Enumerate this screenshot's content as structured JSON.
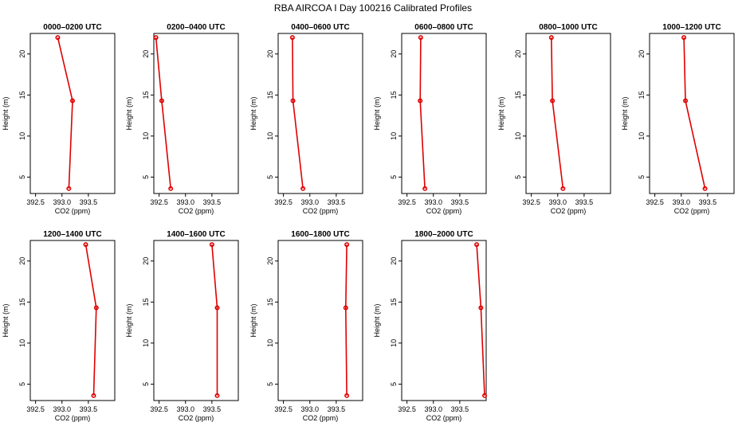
{
  "figure": {
    "title": "RBA AIRCOA I  Day 100216  Calibrated Profiles"
  },
  "chart_data": [
    {
      "type": "line",
      "title": "0000–0200 UTC",
      "xlabel": "CO2 (ppm)",
      "ylabel": "Height (m)",
      "xlim": [
        392.4,
        394.0
      ],
      "ylim": [
        3,
        22.5
      ],
      "xticks": [
        392.5,
        393.0,
        393.5
      ],
      "xtick_labels": [
        "392.5",
        "393.0",
        "393.5"
      ],
      "yticks": [
        5,
        10,
        15,
        20
      ],
      "ytick_labels": [
        "5",
        "10",
        "15",
        "20"
      ],
      "series": [
        {
          "x": [
            392.92,
            393.2,
            393.13
          ],
          "y": [
            22,
            14.3,
            3.6
          ],
          "color": "#e00000"
        }
      ],
      "grid": false
    },
    {
      "type": "line",
      "title": "0200–0400 UTC",
      "xlabel": "CO2 (ppm)",
      "ylabel": "Height (m)",
      "xlim": [
        392.4,
        394.0
      ],
      "ylim": [
        3,
        22.5
      ],
      "xticks": [
        392.5,
        393.0,
        393.5
      ],
      "xtick_labels": [
        "392.5",
        "393.0",
        "393.5"
      ],
      "yticks": [
        5,
        10,
        15,
        20
      ],
      "ytick_labels": [
        "5",
        "10",
        "15",
        "20"
      ],
      "series": [
        {
          "x": [
            392.44,
            392.55,
            392.72
          ],
          "y": [
            22,
            14.3,
            3.6
          ],
          "color": "#e00000"
        }
      ],
      "grid": false
    },
    {
      "type": "line",
      "title": "0400–0600 UTC",
      "xlabel": "CO2 (ppm)",
      "ylabel": "Height (m)",
      "xlim": [
        392.4,
        394.0
      ],
      "ylim": [
        3,
        22.5
      ],
      "xticks": [
        392.5,
        393.0,
        393.5
      ],
      "xtick_labels": [
        "392.5",
        "393.0",
        "393.5"
      ],
      "yticks": [
        5,
        10,
        15,
        20
      ],
      "ytick_labels": [
        "5",
        "10",
        "15",
        "20"
      ],
      "series": [
        {
          "x": [
            392.67,
            392.68,
            392.87
          ],
          "y": [
            22,
            14.3,
            3.6
          ],
          "color": "#e00000"
        }
      ],
      "grid": false
    },
    {
      "type": "line",
      "title": "0600–0800 UTC",
      "xlabel": "CO2 (ppm)",
      "ylabel": "Height (m)",
      "xlim": [
        392.4,
        394.0
      ],
      "ylim": [
        3,
        22.5
      ],
      "xticks": [
        392.5,
        393.0,
        393.5
      ],
      "xtick_labels": [
        "392.5",
        "393.0",
        "393.5"
      ],
      "yticks": [
        5,
        10,
        15,
        20
      ],
      "ytick_labels": [
        "5",
        "10",
        "15",
        "20"
      ],
      "series": [
        {
          "x": [
            392.76,
            392.75,
            392.84
          ],
          "y": [
            22,
            14.3,
            3.6
          ],
          "color": "#e00000"
        }
      ],
      "grid": false
    },
    {
      "type": "line",
      "title": "0800–1000 UTC",
      "xlabel": "CO2 (ppm)",
      "ylabel": "Height (m)",
      "xlim": [
        392.4,
        394.0
      ],
      "ylim": [
        3,
        22.5
      ],
      "xticks": [
        392.5,
        393.0,
        393.5
      ],
      "xtick_labels": [
        "392.5",
        "393.0",
        "393.5"
      ],
      "yticks": [
        5,
        10,
        15,
        20
      ],
      "ytick_labels": [
        "5",
        "10",
        "15",
        "20"
      ],
      "series": [
        {
          "x": [
            392.88,
            392.9,
            393.1
          ],
          "y": [
            22,
            14.3,
            3.6
          ],
          "color": "#e00000"
        }
      ],
      "grid": false
    },
    {
      "type": "line",
      "title": "1000–1200 UTC",
      "xlabel": "CO2 (ppm)",
      "ylabel": "Height (m)",
      "xlim": [
        392.4,
        394.0
      ],
      "ylim": [
        3,
        22.5
      ],
      "xticks": [
        392.5,
        393.0,
        393.5
      ],
      "xtick_labels": [
        "392.5",
        "393.0",
        "393.5"
      ],
      "yticks": [
        5,
        10,
        15,
        20
      ],
      "ytick_labels": [
        "5",
        "10",
        "15",
        "20"
      ],
      "series": [
        {
          "x": [
            393.05,
            393.08,
            393.45
          ],
          "y": [
            22,
            14.3,
            3.6
          ],
          "color": "#e00000"
        }
      ],
      "grid": false
    },
    {
      "type": "line",
      "title": "1200–1400 UTC",
      "xlabel": "CO2 (ppm)",
      "ylabel": "Height (m)",
      "xlim": [
        392.4,
        394.0
      ],
      "ylim": [
        3,
        22.5
      ],
      "xticks": [
        392.5,
        393.0,
        393.5
      ],
      "xtick_labels": [
        "392.5",
        "393.0",
        "393.5"
      ],
      "yticks": [
        5,
        10,
        15,
        20
      ],
      "ytick_labels": [
        "5",
        "10",
        "15",
        "20"
      ],
      "series": [
        {
          "x": [
            393.45,
            393.65,
            393.6
          ],
          "y": [
            22,
            14.3,
            3.6
          ],
          "color": "#e00000"
        }
      ],
      "grid": false
    },
    {
      "type": "line",
      "title": "1400–1600 UTC",
      "xlabel": "CO2 (ppm)",
      "ylabel": "Height (m)",
      "xlim": [
        392.4,
        394.0
      ],
      "ylim": [
        3,
        22.5
      ],
      "xticks": [
        392.5,
        393.0,
        393.5
      ],
      "xtick_labels": [
        "392.5",
        "393.0",
        "393.5"
      ],
      "yticks": [
        5,
        10,
        15,
        20
      ],
      "ytick_labels": [
        "5",
        "10",
        "15",
        "20"
      ],
      "series": [
        {
          "x": [
            393.5,
            393.6,
            393.6
          ],
          "y": [
            22,
            14.3,
            3.6
          ],
          "color": "#e00000"
        }
      ],
      "grid": false
    },
    {
      "type": "line",
      "title": "1600–1800 UTC",
      "xlabel": "CO2 (ppm)",
      "ylabel": "Height (m)",
      "xlim": [
        392.4,
        394.0
      ],
      "ylim": [
        3,
        22.5
      ],
      "xticks": [
        392.5,
        393.0,
        393.5
      ],
      "xtick_labels": [
        "392.5",
        "393.0",
        "393.5"
      ],
      "yticks": [
        5,
        10,
        15,
        20
      ],
      "ytick_labels": [
        "5",
        "10",
        "15",
        "20"
      ],
      "series": [
        {
          "x": [
            393.7,
            393.68,
            393.7
          ],
          "y": [
            22,
            14.3,
            3.6
          ],
          "color": "#e00000"
        }
      ],
      "grid": false
    },
    {
      "type": "line",
      "title": "1800–2000 UTC",
      "xlabel": "CO2 (ppm)",
      "ylabel": "Height (m)",
      "xlim": [
        392.4,
        394.0
      ],
      "ylim": [
        3,
        22.5
      ],
      "xticks": [
        392.5,
        393.0,
        393.5
      ],
      "xtick_labels": [
        "392.5",
        "393.0",
        "393.5"
      ],
      "yticks": [
        5,
        10,
        15,
        20
      ],
      "ytick_labels": [
        "5",
        "10",
        "15",
        "20"
      ],
      "series": [
        {
          "x": [
            393.82,
            393.9,
            393.97
          ],
          "y": [
            22,
            14.3,
            3.6
          ],
          "color": "#e00000"
        }
      ],
      "grid": false
    }
  ]
}
